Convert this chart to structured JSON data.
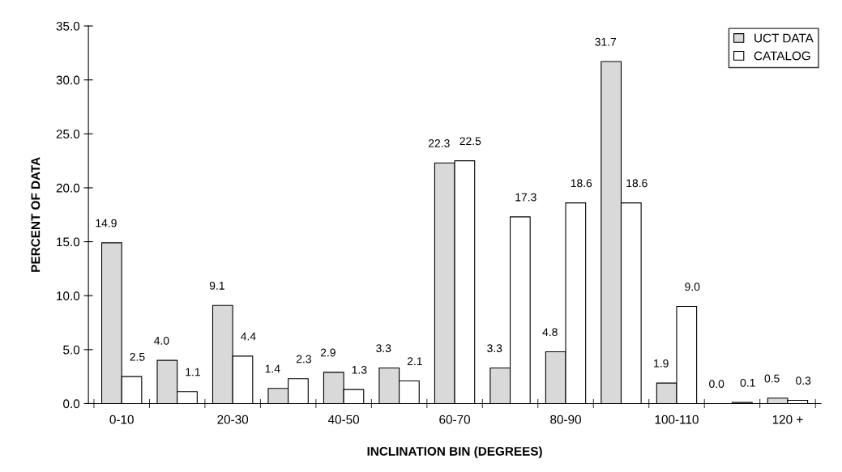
{
  "chart_data": {
    "type": "bar",
    "xlabel": "INCLINATION BIN (DEGREES)",
    "ylabel": "PERCENT OF DATA",
    "categories": [
      "0-10",
      null,
      "20-30",
      null,
      "40-50",
      null,
      "60-70",
      null,
      "80-90",
      null,
      "100-110",
      null,
      "120 +"
    ],
    "series": [
      {
        "name": "UCT DATA",
        "color": "#d9d9d9",
        "values": [
          14.9,
          4.0,
          9.1,
          1.4,
          2.9,
          3.3,
          22.3,
          3.3,
          4.8,
          31.7,
          1.9,
          0.0,
          0.5
        ],
        "value_labels": [
          "14.9",
          "4.0",
          "9.1",
          "1.4",
          "2.9",
          "3.3",
          "22.3",
          "3.3",
          "4.8",
          "31.7",
          "1.9",
          "0.0",
          "0.5"
        ]
      },
      {
        "name": "CATALOG",
        "color": "#ffffff",
        "values": [
          2.5,
          1.1,
          4.4,
          2.3,
          1.3,
          2.1,
          22.5,
          17.3,
          18.6,
          18.6,
          9.0,
          0.1,
          0.3
        ],
        "value_labels": [
          "2.5",
          "1.1",
          "4.4",
          "2.3",
          "1.3",
          "2.1",
          "22.5",
          "17.3",
          "18.6",
          "18.6",
          "9.0",
          "0.1",
          "0.3"
        ]
      }
    ],
    "ylim": [
      0,
      35
    ],
    "yticks": [
      {
        "value": 0,
        "label": "0.0"
      },
      {
        "value": 5,
        "label": "5.0"
      },
      {
        "value": 10,
        "label": "10.0"
      },
      {
        "value": 15,
        "label": "15.0"
      },
      {
        "value": 20,
        "label": "20.0"
      },
      {
        "value": 25,
        "label": "25.0"
      },
      {
        "value": 30,
        "label": "30.0"
      },
      {
        "value": 35,
        "label": "35.0"
      }
    ],
    "legend": "top right",
    "grid": false
  }
}
